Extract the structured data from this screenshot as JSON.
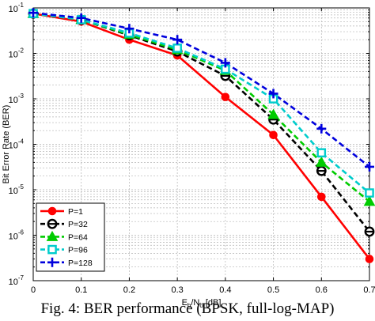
{
  "caption": "Fig. 4: BER performance (BPSK, full-log-MAP)",
  "chart_data": {
    "type": "line",
    "xlabel": "E_b/N_o [dB]",
    "ylabel": "Bit Error Rate (BER)",
    "xlim": [
      0,
      0.7
    ],
    "ylim": [
      1e-07,
      0.1
    ],
    "y_scale": "log",
    "grid": true,
    "legend_position": "bottom-left",
    "x": [
      0,
      0.1,
      0.2,
      0.3,
      0.4,
      0.5,
      0.6,
      0.7
    ],
    "x_tick_labels": [
      "0",
      "0.1",
      "0.2",
      "0.3",
      "0.4",
      "0.5",
      "0.6",
      "0.7"
    ],
    "y_tick_exponents": [
      -7,
      -6,
      -5,
      -4,
      -3,
      -2,
      -1
    ],
    "y_tick_base": "10",
    "series": [
      {
        "name": "P=1",
        "color": "#ff0000",
        "line": "solid",
        "marker": "filled-circle",
        "values": [
          0.075,
          0.05,
          0.02,
          0.009,
          0.0011,
          0.00016,
          7e-06,
          3e-07
        ]
      },
      {
        "name": "P=32",
        "color": "#000000",
        "line": "dashed",
        "marker": "theta-circle",
        "values": [
          0.075,
          0.055,
          0.025,
          0.011,
          0.0032,
          0.00035,
          2.6e-05,
          1.2e-06
        ]
      },
      {
        "name": "P=64",
        "color": "#00cc00",
        "line": "dashed",
        "marker": "filled-triangle",
        "values": [
          0.075,
          0.055,
          0.026,
          0.012,
          0.0042,
          0.00045,
          4e-05,
          5.5e-06
        ]
      },
      {
        "name": "P=96",
        "color": "#00cccc",
        "line": "dashed",
        "marker": "open-square",
        "values": [
          0.075,
          0.055,
          0.028,
          0.013,
          0.0045,
          0.001,
          6.5e-05,
          8.5e-06
        ]
      },
      {
        "name": "P=128",
        "color": "#0000dd",
        "line": "dashed",
        "marker": "plus",
        "values": [
          0.078,
          0.06,
          0.035,
          0.02,
          0.0062,
          0.0013,
          0.00022,
          3.2e-05
        ]
      }
    ]
  }
}
